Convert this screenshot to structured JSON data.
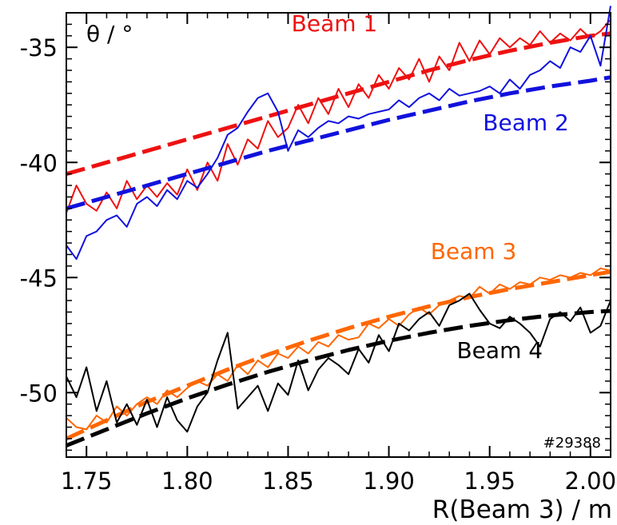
{
  "chart_data": {
    "type": "line",
    "title": "",
    "ylabel": "θ / °",
    "xlabel": "R(Beam 3) / m",
    "annotation": "#29388",
    "xlim": [
      1.74,
      2.01
    ],
    "ylim": [
      -52.8,
      -33.5
    ],
    "xticks": [
      1.75,
      1.8,
      1.85,
      1.9,
      1.95,
      2.0
    ],
    "xtick_labels": [
      "1.75",
      "1.80",
      "1.85",
      "1.90",
      "1.95",
      "2.00"
    ],
    "yticks": [
      -35,
      -40,
      -45,
      -50
    ],
    "ytick_labels": [
      "-35",
      "-40",
      "-45",
      "-50"
    ],
    "grid": false,
    "series": [
      {
        "name": "Beam 1",
        "color": "#ee1111",
        "style": "dashed",
        "x": [
          1.74,
          1.76,
          1.78,
          1.8,
          1.82,
          1.84,
          1.86,
          1.88,
          1.9,
          1.92,
          1.94,
          1.96,
          1.98,
          2.0,
          2.01
        ],
        "y": [
          -40.5,
          -40.0,
          -39.5,
          -39.0,
          -38.5,
          -38.0,
          -37.5,
          -37.0,
          -36.5,
          -36.0,
          -35.55,
          -35.15,
          -34.8,
          -34.5,
          -34.4
        ]
      },
      {
        "name": "Beam 1",
        "color": "#ee1111",
        "style": "solid",
        "x": [
          1.74,
          1.745,
          1.75,
          1.755,
          1.76,
          1.765,
          1.77,
          1.775,
          1.78,
          1.785,
          1.79,
          1.795,
          1.8,
          1.805,
          1.81,
          1.815,
          1.82,
          1.825,
          1.83,
          1.835,
          1.84,
          1.845,
          1.85,
          1.855,
          1.86,
          1.865,
          1.87,
          1.875,
          1.88,
          1.885,
          1.89,
          1.895,
          1.9,
          1.905,
          1.91,
          1.915,
          1.92,
          1.925,
          1.93,
          1.935,
          1.94,
          1.945,
          1.95,
          1.955,
          1.96,
          1.965,
          1.97,
          1.975,
          1.98,
          1.985,
          1.99,
          1.995,
          2.0,
          2.005,
          2.01
        ],
        "y": [
          -42.2,
          -41.0,
          -41.8,
          -42.1,
          -41.3,
          -42.0,
          -40.8,
          -41.6,
          -41.0,
          -41.5,
          -40.9,
          -41.4,
          -40.3,
          -41.2,
          -40.0,
          -40.8,
          -39.2,
          -40.1,
          -39.0,
          -39.4,
          -38.2,
          -38.9,
          -38.5,
          -37.5,
          -38.3,
          -37.2,
          -37.9,
          -36.8,
          -37.6,
          -36.6,
          -37.2,
          -36.2,
          -36.8,
          -35.9,
          -36.4,
          -35.5,
          -36.5,
          -35.4,
          -36.0,
          -34.8,
          -35.6,
          -34.7,
          -35.3,
          -34.6,
          -35.0,
          -34.6,
          -34.9,
          -34.3,
          -34.8,
          -34.4,
          -34.7,
          -34.2,
          -34.6,
          -34.3,
          -33.8
        ]
      },
      {
        "name": "Beam 2",
        "color": "#1111dd",
        "style": "dashed",
        "x": [
          1.74,
          1.76,
          1.78,
          1.8,
          1.82,
          1.84,
          1.86,
          1.88,
          1.9,
          1.92,
          1.94,
          1.96,
          1.98,
          2.0,
          2.01
        ],
        "y": [
          -42.0,
          -41.5,
          -41.0,
          -40.5,
          -40.0,
          -39.5,
          -39.05,
          -38.6,
          -38.15,
          -37.75,
          -37.35,
          -37.0,
          -36.7,
          -36.45,
          -36.3
        ]
      },
      {
        "name": "Beam 2",
        "color": "#1111dd",
        "style": "solid",
        "x": [
          1.74,
          1.745,
          1.75,
          1.755,
          1.76,
          1.765,
          1.77,
          1.775,
          1.78,
          1.785,
          1.79,
          1.795,
          1.8,
          1.805,
          1.81,
          1.815,
          1.82,
          1.825,
          1.83,
          1.835,
          1.84,
          1.845,
          1.85,
          1.855,
          1.86,
          1.865,
          1.87,
          1.875,
          1.88,
          1.885,
          1.89,
          1.895,
          1.9,
          1.905,
          1.91,
          1.915,
          1.92,
          1.925,
          1.93,
          1.935,
          1.94,
          1.945,
          1.95,
          1.955,
          1.96,
          1.965,
          1.97,
          1.975,
          1.98,
          1.985,
          1.99,
          1.995,
          2.0,
          2.005,
          2.01
        ],
        "y": [
          -43.6,
          -44.2,
          -43.2,
          -43.0,
          -42.5,
          -42.3,
          -42.8,
          -41.8,
          -41.5,
          -41.9,
          -41.2,
          -41.6,
          -40.8,
          -41.1,
          -40.5,
          -39.8,
          -38.8,
          -38.5,
          -37.8,
          -37.2,
          -37.0,
          -37.8,
          -39.5,
          -38.6,
          -38.9,
          -38.5,
          -38.2,
          -38.3,
          -38.0,
          -38.1,
          -37.9,
          -37.8,
          -37.7,
          -37.3,
          -37.6,
          -37.2,
          -37.0,
          -37.3,
          -36.8,
          -37.1,
          -37.0,
          -36.9,
          -36.7,
          -37.0,
          -36.4,
          -36.8,
          -36.2,
          -36.0,
          -35.6,
          -35.9,
          -35.0,
          -35.2,
          -34.5,
          -35.8,
          -33.2
        ]
      },
      {
        "name": "Beam 3",
        "color": "#ff6600",
        "style": "dashed",
        "x": [
          1.74,
          1.76,
          1.78,
          1.8,
          1.82,
          1.84,
          1.86,
          1.88,
          1.9,
          1.92,
          1.94,
          1.96,
          1.98,
          2.0,
          2.01
        ],
        "y": [
          -52.0,
          -51.2,
          -50.4,
          -49.7,
          -49.0,
          -48.35,
          -47.75,
          -47.2,
          -46.7,
          -46.25,
          -45.85,
          -45.5,
          -45.2,
          -44.9,
          -44.75
        ]
      },
      {
        "name": "Beam 3",
        "color": "#ff6600",
        "style": "solid",
        "x": [
          1.74,
          1.745,
          1.75,
          1.755,
          1.76,
          1.765,
          1.77,
          1.775,
          1.78,
          1.785,
          1.79,
          1.795,
          1.8,
          1.805,
          1.81,
          1.815,
          1.82,
          1.825,
          1.83,
          1.835,
          1.84,
          1.845,
          1.85,
          1.855,
          1.86,
          1.865,
          1.87,
          1.875,
          1.88,
          1.885,
          1.89,
          1.895,
          1.9,
          1.905,
          1.91,
          1.915,
          1.92,
          1.925,
          1.93,
          1.935,
          1.94,
          1.945,
          1.95,
          1.955,
          1.96,
          1.965,
          1.97,
          1.975,
          1.98,
          1.985,
          1.99,
          1.995,
          2.0,
          2.005,
          2.01
        ],
        "y": [
          -51.1,
          -51.5,
          -51.6,
          -51.0,
          -51.3,
          -50.6,
          -51.0,
          -50.5,
          -50.2,
          -50.5,
          -49.9,
          -50.2,
          -49.8,
          -49.5,
          -49.7,
          -49.2,
          -49.5,
          -48.8,
          -49.2,
          -48.6,
          -48.9,
          -48.3,
          -48.5,
          -48.0,
          -48.3,
          -47.8,
          -48.0,
          -47.5,
          -47.7,
          -47.6,
          -47.0,
          -47.2,
          -46.8,
          -47.1,
          -46.6,
          -46.3,
          -46.6,
          -46.2,
          -46.0,
          -45.8,
          -45.9,
          -45.4,
          -45.7,
          -45.3,
          -45.5,
          -45.2,
          -45.3,
          -45.0,
          -45.1,
          -44.9,
          -45.0,
          -44.8,
          -44.9,
          -44.6,
          -44.7
        ]
      },
      {
        "name": "Beam 4",
        "color": "#000000",
        "style": "dashed",
        "x": [
          1.74,
          1.76,
          1.78,
          1.8,
          1.82,
          1.84,
          1.86,
          1.88,
          1.9,
          1.92,
          1.94,
          1.96,
          1.98,
          2.0,
          2.01
        ],
        "y": [
          -52.3,
          -51.6,
          -50.9,
          -50.25,
          -49.65,
          -49.1,
          -48.6,
          -48.15,
          -47.75,
          -47.4,
          -47.1,
          -46.85,
          -46.65,
          -46.5,
          -46.45
        ]
      },
      {
        "name": "Beam 4",
        "color": "#000000",
        "style": "solid",
        "x": [
          1.74,
          1.745,
          1.75,
          1.755,
          1.76,
          1.765,
          1.77,
          1.775,
          1.78,
          1.785,
          1.79,
          1.795,
          1.8,
          1.805,
          1.81,
          1.815,
          1.82,
          1.825,
          1.83,
          1.835,
          1.84,
          1.845,
          1.85,
          1.855,
          1.86,
          1.865,
          1.87,
          1.875,
          1.88,
          1.885,
          1.89,
          1.895,
          1.9,
          1.905,
          1.91,
          1.915,
          1.92,
          1.925,
          1.93,
          1.935,
          1.94,
          1.945,
          1.95,
          1.955,
          1.96,
          1.965,
          1.97,
          1.975,
          1.98,
          1.985,
          1.99,
          1.995,
          2.0,
          2.005,
          2.01
        ],
        "y": [
          -49.3,
          -50.2,
          -48.9,
          -50.8,
          -49.5,
          -51.3,
          -50.5,
          -51.4,
          -50.3,
          -51.5,
          -50.2,
          -51.2,
          -51.7,
          -50.6,
          -50.0,
          -48.6,
          -47.4,
          -50.7,
          -50.2,
          -49.7,
          -50.8,
          -49.6,
          -50.1,
          -48.6,
          -49.9,
          -49.0,
          -48.5,
          -48.8,
          -49.2,
          -48.1,
          -48.7,
          -47.5,
          -48.2,
          -47.0,
          -47.3,
          -46.8,
          -46.5,
          -47.1,
          -46.2,
          -46.0,
          -45.7,
          -46.4,
          -47.0,
          -47.2,
          -46.7,
          -47.0,
          -47.4,
          -48.0,
          -46.8,
          -46.5,
          -46.9,
          -46.3,
          -47.4,
          -47.1,
          -46.0
        ]
      }
    ],
    "labels": [
      {
        "text": "Beam 1",
        "color": "#ee1111",
        "x": 1.873,
        "y": -34.3
      },
      {
        "text": "Beam 2",
        "color": "#1111dd",
        "x": 1.968,
        "y": -38.6
      },
      {
        "text": "Beam 3",
        "color": "#ff6600",
        "x": 1.942,
        "y": -44.2
      },
      {
        "text": "Beam 4",
        "color": "#000000",
        "x": 1.955,
        "y": -48.5
      }
    ]
  }
}
